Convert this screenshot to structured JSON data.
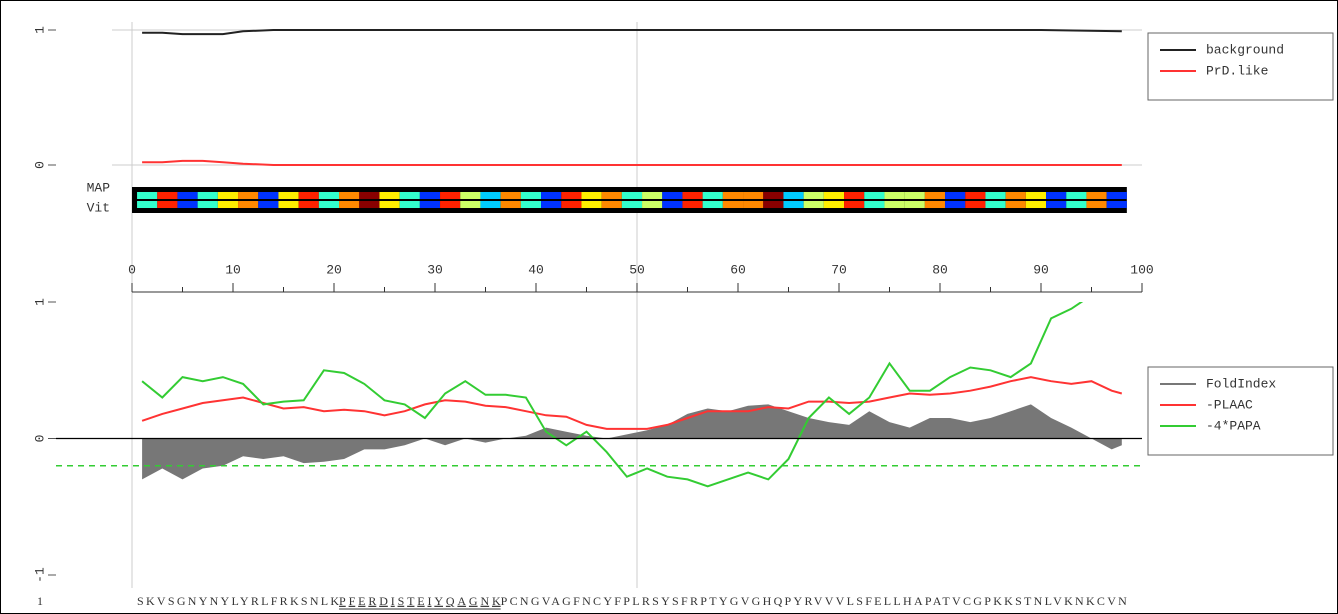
{
  "chart_data": [
    {
      "type": "line",
      "xlim": [
        0,
        100
      ],
      "xticks": [
        0,
        10,
        20,
        30,
        40,
        50,
        60,
        70,
        80,
        90,
        100
      ],
      "xgrid": [
        0,
        50
      ],
      "ylim": [
        0,
        1
      ],
      "yticks": [
        0,
        1
      ],
      "grid": true,
      "series": [
        {
          "name": "background",
          "color": "#222222",
          "x": [
            1,
            3,
            5,
            7,
            9,
            11,
            14,
            20,
            30,
            50,
            70,
            90,
            98
          ],
          "values": [
            0.98,
            0.98,
            0.97,
            0.97,
            0.97,
            0.99,
            1.0,
            1.0,
            1.0,
            1.0,
            1.0,
            1.0,
            0.99
          ]
        },
        {
          "name": "PrD.like",
          "color": "#ff3333",
          "x": [
            1,
            3,
            5,
            7,
            9,
            11,
            14,
            20,
            30,
            50,
            70,
            90,
            98
          ],
          "values": [
            0.02,
            0.02,
            0.03,
            0.03,
            0.02,
            0.01,
            0.0,
            0.0,
            0.0,
            0.0,
            0.0,
            0.0,
            0.0
          ]
        }
      ],
      "tracks": [
        {
          "label": "MAP"
        },
        {
          "label": "Vit"
        }
      ],
      "track_colors": [
        "#33ffcc",
        "#ff2200",
        "#0033ff",
        "#33ffcc",
        "#ffee00",
        "#ff8800",
        "#0033ff",
        "#ffee00",
        "#ff2200",
        "#33ffcc",
        "#ff8800",
        "#880000",
        "#ffee00",
        "#33ffcc",
        "#0033ff",
        "#ff2200",
        "#ccff66",
        "#00ccff",
        "#ff8800",
        "#33ffcc",
        "#0033ff",
        "#ff2200",
        "#ffee00",
        "#ff8800",
        "#33ffcc",
        "#ccff66",
        "#0033ff",
        "#ff2200",
        "#33ffcc",
        "#ff8800",
        "#ff8800",
        "#880000",
        "#00ccff",
        "#ccff66",
        "#ffee00",
        "#ff2200",
        "#33ffcc",
        "#ccff66",
        "#ccff66",
        "#ff8800",
        "#0033ff",
        "#ff2200",
        "#33ffcc",
        "#ff8800",
        "#ffee00",
        "#0033ff",
        "#33ffcc",
        "#ff8800",
        "#0033ff"
      ]
    },
    {
      "type": "line",
      "xlim": [
        0,
        100
      ],
      "ylim": [
        -1,
        1
      ],
      "yticks": [
        -1,
        0,
        1
      ],
      "hline": {
        "value": -0.2,
        "color": "#33cc33"
      },
      "series": [
        {
          "name": "FoldIndex",
          "color": "#777777",
          "fill": true,
          "x": [
            1,
            3,
            5,
            7,
            9,
            11,
            13,
            15,
            17,
            19,
            21,
            23,
            25,
            27,
            29,
            31,
            33,
            35,
            37,
            39,
            41,
            43,
            45,
            47,
            49,
            51,
            53,
            55,
            57,
            59,
            61,
            63,
            65,
            67,
            69,
            71,
            73,
            75,
            77,
            79,
            81,
            83,
            85,
            87,
            89,
            91,
            93,
            95,
            97,
            98
          ],
          "values": [
            -0.3,
            -0.22,
            -0.3,
            -0.22,
            -0.2,
            -0.13,
            -0.15,
            -0.13,
            -0.18,
            -0.17,
            -0.15,
            -0.08,
            -0.08,
            -0.05,
            0.0,
            -0.05,
            0.0,
            -0.03,
            0.0,
            0.02,
            0.08,
            0.05,
            0.02,
            0.0,
            0.03,
            0.06,
            0.1,
            0.18,
            0.22,
            0.2,
            0.24,
            0.25,
            0.2,
            0.15,
            0.12,
            0.1,
            0.2,
            0.12,
            0.08,
            0.15,
            0.15,
            0.12,
            0.15,
            0.2,
            0.25,
            0.15,
            0.08,
            0.0,
            -0.08,
            -0.05
          ]
        },
        {
          "name": "-PLAAC",
          "color": "#ff3333",
          "x": [
            1,
            3,
            5,
            7,
            9,
            11,
            13,
            15,
            17,
            19,
            21,
            23,
            25,
            27,
            29,
            31,
            33,
            35,
            37,
            39,
            41,
            43,
            45,
            47,
            49,
            51,
            53,
            55,
            57,
            59,
            61,
            63,
            65,
            67,
            69,
            71,
            73,
            75,
            77,
            79,
            81,
            83,
            85,
            87,
            89,
            91,
            93,
            95,
            97,
            98
          ],
          "values": [
            0.13,
            0.18,
            0.22,
            0.26,
            0.28,
            0.3,
            0.26,
            0.22,
            0.23,
            0.2,
            0.21,
            0.2,
            0.17,
            0.2,
            0.25,
            0.28,
            0.27,
            0.24,
            0.23,
            0.2,
            0.17,
            0.16,
            0.1,
            0.07,
            0.07,
            0.07,
            0.1,
            0.15,
            0.2,
            0.2,
            0.2,
            0.23,
            0.22,
            0.27,
            0.27,
            0.26,
            0.27,
            0.3,
            0.33,
            0.32,
            0.33,
            0.35,
            0.38,
            0.42,
            0.45,
            0.42,
            0.4,
            0.42,
            0.35,
            0.33
          ]
        },
        {
          "name": "-4*PAPA",
          "color": "#33cc33",
          "x": [
            1,
            3,
            5,
            7,
            9,
            11,
            13,
            15,
            17,
            19,
            21,
            23,
            25,
            27,
            29,
            31,
            33,
            35,
            37,
            39,
            41,
            43,
            45,
            47,
            49,
            51,
            53,
            55,
            57,
            59,
            61,
            63,
            65,
            67,
            69,
            71,
            73,
            75,
            77,
            79,
            81,
            83,
            85,
            87,
            89,
            91,
            93,
            95,
            97,
            98
          ],
          "values": [
            0.42,
            0.3,
            0.45,
            0.42,
            0.45,
            0.4,
            0.25,
            0.27,
            0.28,
            0.5,
            0.48,
            0.4,
            0.28,
            0.25,
            0.15,
            0.33,
            0.42,
            0.32,
            0.32,
            0.3,
            0.05,
            -0.05,
            0.05,
            -0.1,
            -0.28,
            -0.22,
            -0.28,
            -0.3,
            -0.35,
            -0.3,
            -0.25,
            -0.3,
            -0.15,
            0.15,
            0.3,
            0.18,
            0.3,
            0.55,
            0.35,
            0.35,
            0.45,
            0.52,
            0.5,
            0.45,
            0.55,
            0.88,
            0.95,
            1.05,
            1.2,
            1.25
          ]
        }
      ]
    }
  ],
  "sequence": {
    "start": "1",
    "parts": [
      "SKVSGNYNYLYRLFRKSNLK",
      "PFERDISTEIYQAGNK",
      "PCNGVAGFNCYFPLRSYSFRPTYGVGHQPYRVVVLSFELLHAPATVCGPKKSTNLVKNKCVN"
    ]
  }
}
